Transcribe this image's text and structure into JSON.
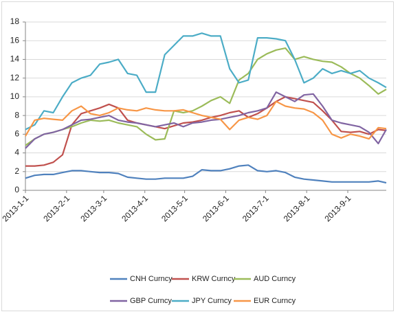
{
  "chart_data": {
    "type": "line",
    "x": [
      "2013-1-1",
      "2013-1-8",
      "2013-1-15",
      "2013-1-22",
      "2013-1-29",
      "2013-2-5",
      "2013-2-12",
      "2013-2-19",
      "2013-2-26",
      "2013-3-5",
      "2013-3-12",
      "2013-3-19",
      "2013-3-26",
      "2013-4-2",
      "2013-4-9",
      "2013-4-16",
      "2013-4-23",
      "2013-4-30",
      "2013-5-7",
      "2013-5-14",
      "2013-5-21",
      "2013-5-28",
      "2013-6-4",
      "2013-6-11",
      "2013-6-18",
      "2013-6-25",
      "2013-7-2",
      "2013-7-9",
      "2013-7-16",
      "2013-7-23",
      "2013-7-30",
      "2013-8-6",
      "2013-8-13",
      "2013-8-20",
      "2013-8-27",
      "2013-9-3",
      "2013-9-10",
      "2013-9-17",
      "2013-9-24",
      "2013-9-30"
    ],
    "series": [
      {
        "name": "CNH Curncy",
        "color": "#4f81bd",
        "values": [
          1.3,
          1.6,
          1.7,
          1.7,
          1.9,
          2.1,
          2.1,
          2.0,
          1.9,
          1.9,
          1.8,
          1.4,
          1.3,
          1.2,
          1.2,
          1.3,
          1.3,
          1.3,
          1.5,
          2.2,
          2.1,
          2.1,
          2.3,
          2.6,
          2.7,
          2.1,
          2.0,
          2.1,
          1.9,
          1.4,
          1.2,
          1.1,
          1.0,
          0.9,
          0.9,
          0.9,
          0.9,
          0.9,
          1.0,
          0.8
        ]
      },
      {
        "name": "KRW Curncy",
        "color": "#c0504d",
        "values": [
          2.6,
          2.6,
          2.7,
          3.0,
          3.8,
          7.0,
          8.2,
          8.5,
          8.8,
          9.2,
          8.8,
          7.5,
          7.2,
          7.0,
          6.8,
          6.6,
          6.9,
          7.2,
          7.3,
          7.5,
          7.8,
          8.0,
          8.3,
          8.5,
          7.8,
          8.2,
          8.8,
          9.5,
          10.0,
          9.8,
          9.6,
          9.4,
          8.5,
          7.5,
          6.3,
          6.2,
          6.3,
          6.0,
          6.5,
          6.4
        ]
      },
      {
        "name": "AUD Curncy",
        "color": "#9bbb59",
        "values": [
          4.8,
          5.5,
          6.0,
          6.2,
          6.5,
          6.8,
          7.2,
          7.5,
          7.4,
          7.5,
          7.2,
          7.0,
          6.8,
          6.0,
          5.4,
          5.5,
          8.5,
          8.3,
          8.5,
          9.0,
          9.6,
          10.0,
          9.3,
          11.8,
          12.5,
          14.0,
          14.6,
          15.0,
          15.2,
          14.0,
          14.3,
          14.0,
          13.8,
          13.7,
          13.2,
          12.5,
          12.0,
          11.2,
          10.3,
          10.8
        ]
      },
      {
        "name": "GBP Curncy",
        "color": "#8064a2",
        "values": [
          4.5,
          5.5,
          6.0,
          6.2,
          6.5,
          7.0,
          7.5,
          7.6,
          7.8,
          8.0,
          7.5,
          7.3,
          7.2,
          7.0,
          6.8,
          7.0,
          7.2,
          6.8,
          7.2,
          7.3,
          7.5,
          7.6,
          7.8,
          8.0,
          8.3,
          8.5,
          8.8,
          10.5,
          10.0,
          9.5,
          10.2,
          10.3,
          9.0,
          7.5,
          7.2,
          7.0,
          6.8,
          6.2,
          5.0,
          6.5
        ]
      },
      {
        "name": "JPY Curncy",
        "color": "#4bacc6",
        "values": [
          6.5,
          7.0,
          8.5,
          8.3,
          10.0,
          11.5,
          12.0,
          12.3,
          13.5,
          13.7,
          14.0,
          12.5,
          12.3,
          10.5,
          10.5,
          14.5,
          15.5,
          16.5,
          16.5,
          16.8,
          16.5,
          16.5,
          13.0,
          11.5,
          11.8,
          16.3,
          16.3,
          16.2,
          16.0,
          14.0,
          11.5,
          12.0,
          13.0,
          12.5,
          12.8,
          12.5,
          12.8,
          12.0,
          11.5,
          11.0
        ]
      },
      {
        "name": "EUR Curncy",
        "color": "#f79646",
        "values": [
          5.8,
          7.5,
          7.7,
          7.6,
          7.5,
          8.5,
          9.0,
          8.2,
          8.0,
          8.3,
          8.8,
          8.6,
          8.5,
          8.8,
          8.6,
          8.5,
          8.5,
          8.6,
          8.3,
          8.0,
          7.8,
          7.6,
          6.5,
          7.5,
          7.8,
          7.6,
          8.0,
          9.5,
          9.0,
          8.8,
          8.7,
          8.3,
          7.5,
          6.0,
          5.6,
          6.0,
          5.8,
          5.5,
          6.7,
          6.6
        ]
      }
    ],
    "xlim": [
      "2013-1-1",
      "2013-9-30"
    ],
    "xticks": [
      "2013-1-1",
      "2013-2-1",
      "2013-3-1",
      "2013-4-1",
      "2013-5-1",
      "2013-6-1",
      "2013-7-1",
      "2013-8-1",
      "2013-9-1"
    ],
    "ylim": [
      0,
      18
    ],
    "yticks": [
      0,
      2,
      4,
      6,
      8,
      10,
      12,
      14,
      16,
      18
    ],
    "grid": true
  }
}
